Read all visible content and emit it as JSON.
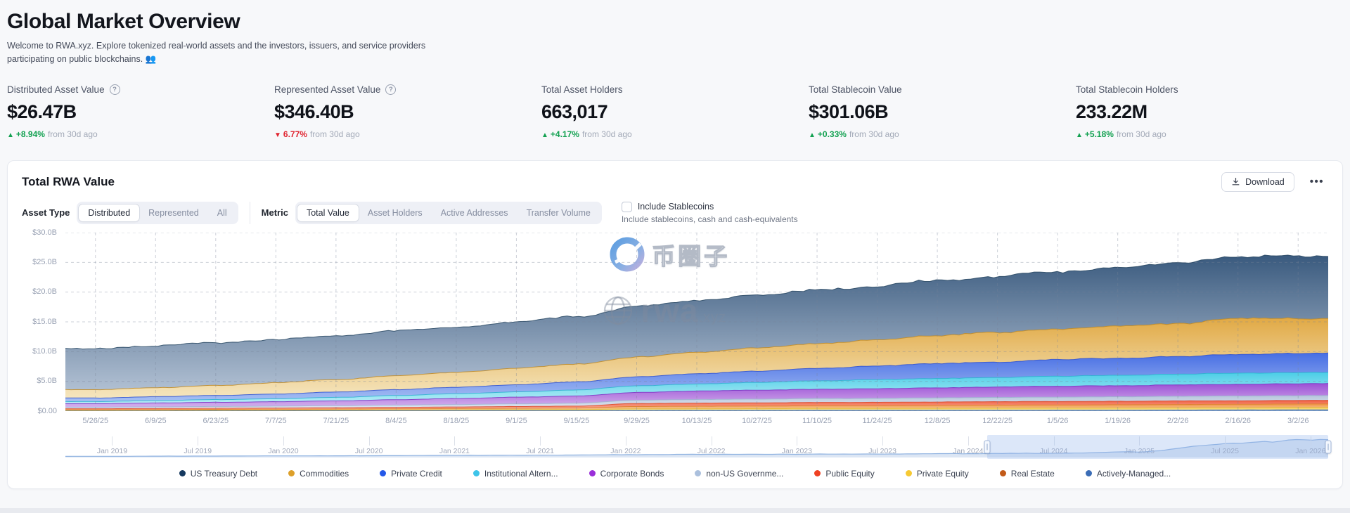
{
  "page": {
    "title": "Global Market Overview",
    "description": "Welcome to RWA.xyz. Explore tokenized real-world assets and the investors, issuers, and service providers participating on public blockchains. 👥"
  },
  "stats": [
    {
      "label": "Distributed Asset Value",
      "has_info": true,
      "value": "$26.47B",
      "arrow": "▲",
      "pct": "+8.94%",
      "suffix": "from 30d ago",
      "direction": "up"
    },
    {
      "label": "Represented Asset Value",
      "has_info": true,
      "value": "$346.40B",
      "arrow": "▼",
      "pct": "6.77%",
      "suffix": "from 30d ago",
      "direction": "down"
    },
    {
      "label": "Total Asset Holders",
      "has_info": false,
      "value": "663,017",
      "arrow": "▲",
      "pct": "+4.17%",
      "suffix": "from 30d ago",
      "direction": "up"
    },
    {
      "label": "Total Stablecoin Value",
      "has_info": false,
      "value": "$301.06B",
      "arrow": "▲",
      "pct": "+0.33%",
      "suffix": "from 30d ago",
      "direction": "up"
    },
    {
      "label": "Total Stablecoin Holders",
      "has_info": false,
      "value": "233.22M",
      "arrow": "▲",
      "pct": "+5.18%",
      "suffix": "from 30d ago",
      "direction": "up"
    }
  ],
  "panel": {
    "title": "Total RWA Value",
    "download_label": "Download",
    "menu_label": "•••",
    "asset_type": {
      "label": "Asset Type",
      "options": [
        "Distributed",
        "Represented",
        "All"
      ],
      "selected": "Distributed"
    },
    "metric": {
      "label": "Metric",
      "options": [
        "Total Value",
        "Asset Holders",
        "Active Addresses",
        "Transfer Volume"
      ],
      "selected": "Total Value"
    },
    "stablecoins": {
      "label": "Include Stablecoins",
      "sublabel": "Include stablecoins, cash and cash-equivalents",
      "checked": false
    }
  },
  "watermarks": {
    "logo_text": "币圈子",
    "site_text": "rwa",
    "site_suffix": ".xyz"
  },
  "chart_data": {
    "type": "area",
    "stacked": true,
    "title": "Total RWA Value",
    "xlabel": "",
    "ylabel": "",
    "ylim": [
      0,
      30
    ],
    "grid": "dashed",
    "legend_position": "bottom",
    "yticks": [
      {
        "label": "$30.0B",
        "v": 30
      },
      {
        "label": "$25.0B",
        "v": 25
      },
      {
        "label": "$20.0B",
        "v": 20
      },
      {
        "label": "$15.0B",
        "v": 15
      },
      {
        "label": "$10.0B",
        "v": 10
      },
      {
        "label": "$5.0B",
        "v": 5
      },
      {
        "label": "$0.00",
        "v": 0
      }
    ],
    "x": [
      "5/26/25",
      "6/9/25",
      "6/23/25",
      "7/7/25",
      "7/21/25",
      "8/4/25",
      "8/18/25",
      "9/1/25",
      "9/15/25",
      "9/29/25",
      "10/13/25",
      "10/27/25",
      "11/10/25",
      "11/24/25",
      "12/8/25",
      "12/22/25",
      "1/5/26",
      "1/19/26",
      "2/2/26",
      "2/16/26",
      "3/2/26"
    ],
    "units": "$B",
    "series": [
      {
        "name": "US Treasury Debt",
        "dot": "#16395f",
        "fill_top": "#2f5177",
        "fill_bottom": "#a7b8cd",
        "stroke": "#24445f",
        "values": [
          7.0,
          7.1,
          7.2,
          7.3,
          7.4,
          7.5,
          7.6,
          7.7,
          7.9,
          8.6,
          8.8,
          8.9,
          9.0,
          9.1,
          9.2,
          9.4,
          9.6,
          9.8,
          10.3,
          10.5,
          10.6
        ]
      },
      {
        "name": "Commodities",
        "dot": "#dda02a",
        "fill_top": "#dfa43a",
        "fill_bottom": "#f4e3b8",
        "stroke": "#c08a23",
        "values": [
          1.4,
          1.5,
          1.7,
          1.9,
          2.1,
          2.3,
          2.5,
          2.8,
          3.0,
          3.3,
          3.6,
          3.9,
          4.2,
          4.5,
          4.7,
          5.0,
          5.2,
          5.4,
          5.6,
          6.1,
          5.9
        ]
      },
      {
        "name": "Private Credit",
        "dot": "#2458e8",
        "fill_top": "#3d66e2",
        "fill_bottom": "#9db8f2",
        "stroke": "#2b4fd0",
        "values": [
          0.6,
          0.65,
          0.7,
          0.8,
          0.9,
          1.0,
          1.1,
          1.2,
          1.35,
          1.5,
          1.7,
          1.9,
          2.1,
          2.3,
          2.5,
          2.6,
          2.8,
          2.9,
          3.0,
          3.1,
          3.2
        ]
      },
      {
        "name": "Institutional Altern...",
        "dot": "#3ec4e9",
        "fill_top": "#41cbe5",
        "fill_bottom": "#b0ebf5",
        "stroke": "#2cb0cf",
        "values": [
          0.35,
          0.4,
          0.45,
          0.5,
          0.6,
          0.7,
          0.8,
          0.9,
          1.0,
          1.1,
          1.2,
          1.3,
          1.4,
          1.5,
          1.55,
          1.6,
          1.7,
          1.75,
          1.8,
          1.85,
          1.9
        ]
      },
      {
        "name": "Corporate Bonds",
        "dot": "#9a2fd9",
        "fill_top": "#9747d3",
        "fill_bottom": "#cda8ea",
        "stroke": "#7d2ec2",
        "values": [
          0.6,
          0.65,
          0.7,
          0.75,
          0.8,
          0.9,
          1.0,
          1.1,
          1.2,
          1.3,
          1.4,
          1.5,
          1.55,
          1.6,
          1.7,
          1.75,
          1.8,
          1.85,
          1.9,
          1.95,
          2.0
        ]
      },
      {
        "name": "non-US Governme...",
        "dot": "#abc0dd",
        "fill_top": "#b3c3da",
        "fill_bottom": "#dbe3ef",
        "stroke": "#9db1d0",
        "values": [
          0.25,
          0.27,
          0.3,
          0.32,
          0.35,
          0.38,
          0.4,
          0.45,
          0.5,
          0.55,
          0.6,
          0.62,
          0.65,
          0.68,
          0.7,
          0.72,
          0.74,
          0.76,
          0.78,
          0.8,
          0.8
        ]
      },
      {
        "name": "Public Equity",
        "dot": "#ef4123",
        "fill_top": "#ee5637",
        "fill_bottom": "#f8a78f",
        "stroke": "#dd4426",
        "values": [
          0.15,
          0.16,
          0.18,
          0.2,
          0.22,
          0.25,
          0.27,
          0.3,
          0.32,
          0.5,
          0.52,
          0.54,
          0.55,
          0.56,
          0.57,
          0.58,
          0.58,
          0.59,
          0.6,
          0.6,
          0.6
        ]
      },
      {
        "name": "Private Equity",
        "dot": "#f6c933",
        "fill_top": "#f3ca43",
        "fill_bottom": "#fbeab2",
        "stroke": "#e2b92f",
        "values": [
          0.08,
          0.09,
          0.1,
          0.11,
          0.12,
          0.13,
          0.15,
          0.17,
          0.18,
          0.25,
          0.27,
          0.28,
          0.3,
          0.31,
          0.32,
          0.33,
          0.34,
          0.35,
          0.36,
          0.38,
          0.4
        ]
      },
      {
        "name": "Real Estate",
        "dot": "#c25a18",
        "fill_top": "#ee8e3b",
        "fill_bottom": "#f7c995",
        "stroke": "#dc7e2a",
        "values": [
          0.12,
          0.13,
          0.14,
          0.15,
          0.16,
          0.18,
          0.2,
          0.22,
          0.25,
          0.4,
          0.42,
          0.44,
          0.46,
          0.48,
          0.5,
          0.52,
          0.54,
          0.55,
          0.57,
          0.58,
          0.6
        ]
      },
      {
        "name": "Actively-Managed...",
        "dot": "#3b6db6",
        "fill_top": "#4a7cbd",
        "fill_bottom": "#91b0d6",
        "stroke": "#37639f",
        "values": [
          0.05,
          0.05,
          0.06,
          0.06,
          0.07,
          0.07,
          0.08,
          0.08,
          0.09,
          0.12,
          0.13,
          0.13,
          0.14,
          0.14,
          0.15,
          0.15,
          0.16,
          0.17,
          0.18,
          0.19,
          0.2
        ]
      }
    ],
    "stack_order_bottom_to_top": [
      "Actively-Managed...",
      "Private Equity",
      "Real Estate",
      "Public Equity",
      "non-US Governme...",
      "Corporate Bonds",
      "Institutional Altern...",
      "Private Credit",
      "Commodities",
      "US Treasury Debt"
    ]
  },
  "minimap": {
    "ticks": [
      "Jan 2019",
      "Jul 2019",
      "Jan 2020",
      "Jul 2020",
      "Jan 2021",
      "Jul 2021",
      "Jan 2022",
      "Jul 2022",
      "Jan 2023",
      "Jul 2023",
      "Jan 2024",
      "Jul 2024",
      "Jan 2025",
      "Jul 2025",
      "Jan 2026"
    ],
    "history": [
      0.03,
      0.04,
      0.05,
      0.06,
      0.08,
      0.09,
      0.12,
      0.14,
      0.15,
      0.16,
      0.18,
      0.2,
      0.28,
      0.75,
      0.95
    ],
    "selection": [
      0.73,
      1.0
    ]
  }
}
